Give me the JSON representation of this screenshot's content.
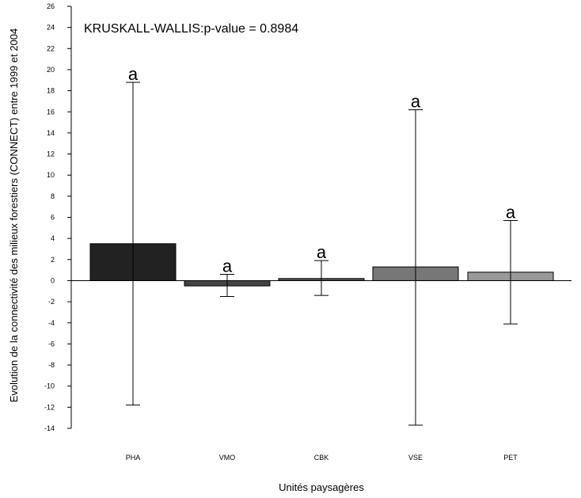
{
  "chart_data": {
    "type": "bar",
    "title": "",
    "annotation": "KRUSKALL-WALLIS:p-value = 0.8984",
    "xlabel": "Unités paysagères",
    "ylabel": "Evolution de la connectivité des milieux forestiers (CONNECT) entre 1999 et 2004",
    "ylim": [
      -14,
      26
    ],
    "yticks": [
      -14,
      -12,
      -10,
      -8,
      -6,
      -4,
      -2,
      0,
      2,
      4,
      6,
      8,
      10,
      12,
      14,
      16,
      18,
      20,
      22,
      24,
      26
    ],
    "categories": [
      "PHA",
      "VMO",
      "CBK",
      "VSE",
      "PET"
    ],
    "values": [
      3.5,
      -0.5,
      0.2,
      1.3,
      0.8
    ],
    "error_low": [
      -11.8,
      -1.5,
      -1.4,
      -13.7,
      -4.1
    ],
    "error_high": [
      18.8,
      0.6,
      1.9,
      16.2,
      5.7
    ],
    "significance_letters": [
      "a",
      "a",
      "a",
      "a",
      "a"
    ],
    "colors": [
      "#222222",
      "#444444",
      "#555555",
      "#777777",
      "#999999"
    ],
    "grid": false,
    "legend": "none"
  }
}
